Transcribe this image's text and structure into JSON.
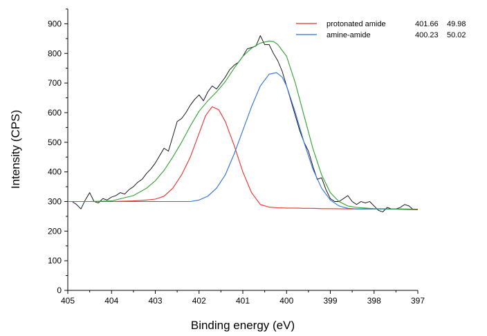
{
  "chart_data": {
    "type": "line",
    "xlabel": "Binding energy (eV)",
    "ylabel": "Intensity (CPS)",
    "xlim": [
      405,
      397
    ],
    "ylim": [
      0,
      950
    ],
    "x_reversed": true,
    "x_ticks": [
      405,
      404,
      403,
      402,
      401,
      400,
      399,
      398,
      397
    ],
    "y_ticks": [
      0,
      100,
      200,
      300,
      400,
      500,
      600,
      700,
      800,
      900
    ],
    "legend_position": "top-right",
    "legend": [
      {
        "label": "protonated amide",
        "position": "401.66",
        "area": "49.98",
        "color": "#e8302b"
      },
      {
        "label": "amine-amide",
        "position": "400.23",
        "area": "50.02",
        "color": "#2b6ee0"
      }
    ],
    "series": [
      {
        "color": "#000000",
        "role": "raw data",
        "x": [
          404.9,
          404.8,
          404.7,
          404.6,
          404.5,
          404.4,
          404.3,
          404.2,
          404.1,
          404.0,
          403.9,
          403.8,
          403.7,
          403.6,
          403.5,
          403.4,
          403.3,
          403.2,
          403.1,
          403.0,
          402.9,
          402.8,
          402.7,
          402.6,
          402.5,
          402.4,
          402.3,
          402.2,
          402.1,
          402.0,
          401.9,
          401.8,
          401.7,
          401.6,
          401.5,
          401.4,
          401.3,
          401.2,
          401.1,
          401.0,
          400.9,
          400.8,
          400.7,
          400.6,
          400.5,
          400.4,
          400.3,
          400.2,
          400.1,
          400.0,
          399.9,
          399.8,
          399.7,
          399.6,
          399.5,
          399.4,
          399.3,
          399.2,
          399.1,
          399.0,
          398.9,
          398.8,
          398.7,
          398.6,
          398.5,
          398.4,
          398.3,
          398.2,
          398.1,
          398.0,
          397.9,
          397.8,
          397.7,
          397.6,
          397.5,
          397.4,
          397.3,
          397.2,
          397.1
        ],
        "y": [
          300,
          290,
          275,
          305,
          330,
          300,
          295,
          310,
          305,
          315,
          320,
          330,
          325,
          340,
          350,
          365,
          375,
          395,
          410,
          430,
          455,
          480,
          470,
          520,
          570,
          580,
          600,
          625,
          645,
          660,
          640,
          670,
          690,
          680,
          700,
          720,
          745,
          760,
          770,
          790,
          815,
          820,
          825,
          860,
          830,
          830,
          800,
          775,
          740,
          690,
          640,
          590,
          540,
          500,
          470,
          420,
          375,
          380,
          340,
          310,
          300,
          300,
          310,
          320,
          300,
          290,
          300,
          295,
          300,
          285,
          270,
          265,
          280,
          275,
          275,
          280,
          290,
          285,
          272
        ]
      },
      {
        "color": "#e8302b",
        "role": "protonated amide",
        "x": [
          405,
          404.5,
          404,
          403.5,
          403.2,
          403,
          402.8,
          402.6,
          402.4,
          402.2,
          402,
          401.85,
          401.7,
          401.55,
          401.4,
          401.2,
          401,
          400.8,
          400.6,
          400.4,
          400.2,
          400,
          399.8,
          399.6,
          399.4,
          399.2,
          399,
          398.5,
          398,
          397.5,
          397
        ],
        "y": [
          300,
          300,
          300,
          302,
          305,
          308,
          318,
          345,
          390,
          450,
          530,
          590,
          620,
          610,
          570,
          490,
          400,
          330,
          290,
          281,
          279,
          278,
          278,
          277,
          277,
          276,
          276,
          275,
          275,
          275,
          274
        ]
      },
      {
        "color": "#2b6ee0",
        "role": "amine-amide",
        "x": [
          405,
          404,
          403,
          402.5,
          402.2,
          402,
          401.8,
          401.6,
          401.4,
          401.2,
          401,
          400.8,
          400.6,
          400.4,
          400.23,
          400.1,
          400,
          399.8,
          399.6,
          399.4,
          399.2,
          399,
          398.8,
          398.6,
          398.4,
          398.2,
          398,
          397.5,
          397
        ],
        "y": [
          300,
          300,
          300,
          300,
          300,
          305,
          318,
          345,
          390,
          460,
          540,
          620,
          690,
          730,
          735,
          720,
          690,
          600,
          500,
          410,
          345,
          305,
          285,
          277,
          275,
          275,
          275,
          274,
          272
        ]
      },
      {
        "color": "#2ca02c",
        "role": "cumulative fit",
        "x": [
          405,
          404.5,
          404,
          403.5,
          403.2,
          403,
          402.8,
          402.6,
          402.4,
          402.2,
          402,
          401.8,
          401.6,
          401.4,
          401.2,
          401,
          400.8,
          400.6,
          400.4,
          400.3,
          400.2,
          400,
          399.8,
          399.6,
          399.4,
          399.2,
          399,
          398.8,
          398.6,
          398.4,
          398.2,
          398,
          397.5,
          397
        ],
        "y": [
          300,
          300,
          302,
          320,
          345,
          370,
          405,
          450,
          500,
          555,
          605,
          640,
          670,
          705,
          750,
          790,
          818,
          835,
          842,
          840,
          830,
          790,
          700,
          590,
          480,
          390,
          330,
          300,
          285,
          280,
          278,
          276,
          275,
          273
        ]
      }
    ]
  }
}
